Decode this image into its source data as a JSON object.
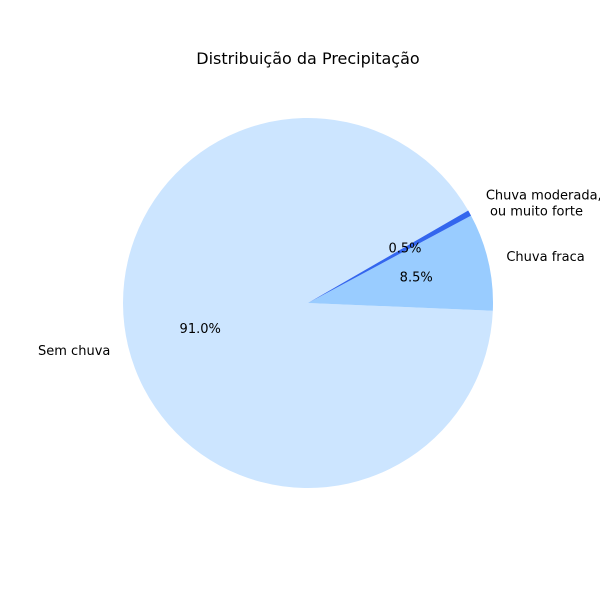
{
  "chart_data": {
    "type": "pie",
    "title": "Distribuição da Precipitação",
    "slices": [
      {
        "label": "Sem chuva",
        "value": 91.0,
        "pct_label": "91.0%",
        "color": "#cce5ff"
      },
      {
        "label": "Chuva fraca",
        "value": 8.5,
        "pct_label": "8.5%",
        "color": "#99ccff"
      },
      {
        "label": "Chuva moderada, forte\n ou muito forte",
        "value": 0.5,
        "pct_label": "0.5%",
        "color": "#3366ee"
      }
    ],
    "legend": "none"
  }
}
